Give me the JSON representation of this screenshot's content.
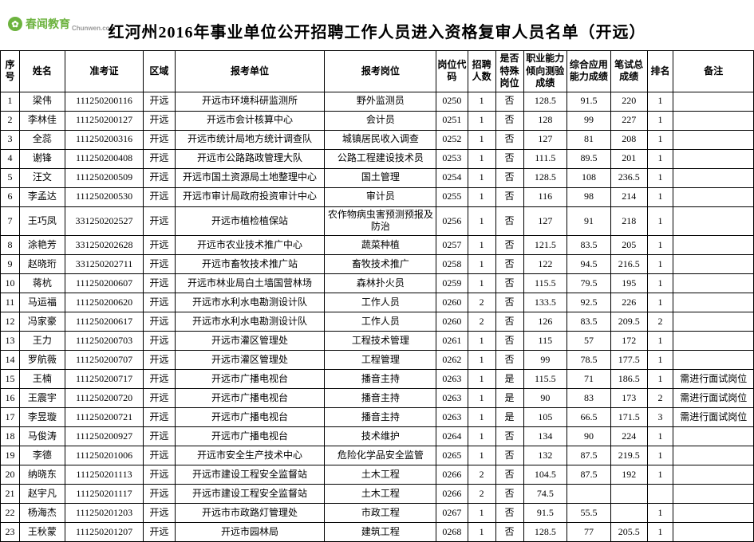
{
  "logo": {
    "main": "春闻教育",
    "sub": "Chunwen.com",
    "iconGlyph": "✿"
  },
  "title": "红河州2016年事业单位公开招聘工作人员进入资格复审人员名单（开远）",
  "headers": {
    "seq": "序号",
    "name": "姓名",
    "exam": "准考证",
    "area": "区域",
    "unit": "报考单位",
    "post": "报考岗位",
    "code": "岗位代码",
    "num": "招聘人数",
    "spec": "是否特殊岗位",
    "s1": "职业能力倾向测验成绩",
    "s2": "综合应用能力成绩",
    "s3": "笔试总成绩",
    "rank": "排名",
    "note": "备注"
  },
  "rows": [
    {
      "seq": "1",
      "name": "梁伟",
      "exam": "111250200116",
      "area": "开远",
      "unit": "开远市环境科研监测所",
      "post": "野外监测员",
      "code": "0250",
      "num": "1",
      "spec": "否",
      "s1": "128.5",
      "s2": "91.5",
      "s3": "220",
      "rank": "1",
      "note": ""
    },
    {
      "seq": "2",
      "name": "李林佳",
      "exam": "111250200127",
      "area": "开远",
      "unit": "开远市会计核算中心",
      "post": "会计员",
      "code": "0251",
      "num": "1",
      "spec": "否",
      "s1": "128",
      "s2": "99",
      "s3": "227",
      "rank": "1",
      "note": ""
    },
    {
      "seq": "3",
      "name": "全蕊",
      "exam": "111250200316",
      "area": "开远",
      "unit": "开远市统计局地方统计调查队",
      "post": "城镇居民收入调查",
      "code": "0252",
      "num": "1",
      "spec": "否",
      "s1": "127",
      "s2": "81",
      "s3": "208",
      "rank": "1",
      "note": ""
    },
    {
      "seq": "4",
      "name": "谢锋",
      "exam": "111250200408",
      "area": "开远",
      "unit": "开远市公路路政管理大队",
      "post": "公路工程建设技术员",
      "code": "0253",
      "num": "1",
      "spec": "否",
      "s1": "111.5",
      "s2": "89.5",
      "s3": "201",
      "rank": "1",
      "note": ""
    },
    {
      "seq": "5",
      "name": "汪文",
      "exam": "111250200509",
      "area": "开远",
      "unit": "开远市国土资源局土地整理中心",
      "post": "国土管理",
      "code": "0254",
      "num": "1",
      "spec": "否",
      "s1": "128.5",
      "s2": "108",
      "s3": "236.5",
      "rank": "1",
      "note": ""
    },
    {
      "seq": "6",
      "name": "李孟达",
      "exam": "111250200530",
      "area": "开远",
      "unit": "开远市审计局政府投资审计中心",
      "post": "审计员",
      "code": "0255",
      "num": "1",
      "spec": "否",
      "s1": "116",
      "s2": "98",
      "s3": "214",
      "rank": "1",
      "note": ""
    },
    {
      "seq": "7",
      "name": "王巧凤",
      "exam": "331250202527",
      "area": "开远",
      "unit": "开远市植检植保站",
      "post": "农作物病虫害预测预报及防治",
      "code": "0256",
      "num": "1",
      "spec": "否",
      "s1": "127",
      "s2": "91",
      "s3": "218",
      "rank": "1",
      "note": ""
    },
    {
      "seq": "8",
      "name": "涂艳芳",
      "exam": "331250202628",
      "area": "开远",
      "unit": "开远市农业技术推广中心",
      "post": "蔬菜种植",
      "code": "0257",
      "num": "1",
      "spec": "否",
      "s1": "121.5",
      "s2": "83.5",
      "s3": "205",
      "rank": "1",
      "note": ""
    },
    {
      "seq": "9",
      "name": "赵晓珩",
      "exam": "331250202711",
      "area": "开远",
      "unit": "开远市畜牧技术推广站",
      "post": "畜牧技术推广",
      "code": "0258",
      "num": "1",
      "spec": "否",
      "s1": "122",
      "s2": "94.5",
      "s3": "216.5",
      "rank": "1",
      "note": ""
    },
    {
      "seq": "10",
      "name": "蒋杭",
      "exam": "111250200607",
      "area": "开远",
      "unit": "开远市林业局白土墙国营林场",
      "post": "森林扑火员",
      "code": "0259",
      "num": "1",
      "spec": "否",
      "s1": "115.5",
      "s2": "79.5",
      "s3": "195",
      "rank": "1",
      "note": ""
    },
    {
      "seq": "11",
      "name": "马运福",
      "exam": "111250200620",
      "area": "开远",
      "unit": "开远市水利水电勘测设计队",
      "post": "工作人员",
      "code": "0260",
      "num": "2",
      "spec": "否",
      "s1": "133.5",
      "s2": "92.5",
      "s3": "226",
      "rank": "1",
      "note": ""
    },
    {
      "seq": "12",
      "name": "冯家豪",
      "exam": "111250200617",
      "area": "开远",
      "unit": "开远市水利水电勘测设计队",
      "post": "工作人员",
      "code": "0260",
      "num": "2",
      "spec": "否",
      "s1": "126",
      "s2": "83.5",
      "s3": "209.5",
      "rank": "2",
      "note": ""
    },
    {
      "seq": "13",
      "name": "王力",
      "exam": "111250200703",
      "area": "开远",
      "unit": "开远市灌区管理处",
      "post": "工程技术管理",
      "code": "0261",
      "num": "1",
      "spec": "否",
      "s1": "115",
      "s2": "57",
      "s3": "172",
      "rank": "1",
      "note": ""
    },
    {
      "seq": "14",
      "name": "罗航薇",
      "exam": "111250200707",
      "area": "开远",
      "unit": "开远市灌区管理处",
      "post": "工程管理",
      "code": "0262",
      "num": "1",
      "spec": "否",
      "s1": "99",
      "s2": "78.5",
      "s3": "177.5",
      "rank": "1",
      "note": ""
    },
    {
      "seq": "15",
      "name": "王楠",
      "exam": "111250200717",
      "area": "开远",
      "unit": "开远市广播电视台",
      "post": "播音主持",
      "code": "0263",
      "num": "1",
      "spec": "是",
      "s1": "115.5",
      "s2": "71",
      "s3": "186.5",
      "rank": "1",
      "note": "需进行面试岗位"
    },
    {
      "seq": "16",
      "name": "王震宇",
      "exam": "111250200720",
      "area": "开远",
      "unit": "开远市广播电视台",
      "post": "播音主持",
      "code": "0263",
      "num": "1",
      "spec": "是",
      "s1": "90",
      "s2": "83",
      "s3": "173",
      "rank": "2",
      "note": "需进行面试岗位"
    },
    {
      "seq": "17",
      "name": "李昱璇",
      "exam": "111250200721",
      "area": "开远",
      "unit": "开远市广播电视台",
      "post": "播音主持",
      "code": "0263",
      "num": "1",
      "spec": "是",
      "s1": "105",
      "s2": "66.5",
      "s3": "171.5",
      "rank": "3",
      "note": "需进行面试岗位"
    },
    {
      "seq": "18",
      "name": "马俊涛",
      "exam": "111250200927",
      "area": "开远",
      "unit": "开远市广播电视台",
      "post": "技术维护",
      "code": "0264",
      "num": "1",
      "spec": "否",
      "s1": "134",
      "s2": "90",
      "s3": "224",
      "rank": "1",
      "note": ""
    },
    {
      "seq": "19",
      "name": "李德",
      "exam": "111250201006",
      "area": "开远",
      "unit": "开远市安全生产技术中心",
      "post": "危险化学品安全监管",
      "code": "0265",
      "num": "1",
      "spec": "否",
      "s1": "132",
      "s2": "87.5",
      "s3": "219.5",
      "rank": "1",
      "note": ""
    },
    {
      "seq": "20",
      "name": "纳晓东",
      "exam": "111250201113",
      "area": "开远",
      "unit": "开远市建设工程安全监督站",
      "post": "土木工程",
      "code": "0266",
      "num": "2",
      "spec": "否",
      "s1": "104.5",
      "s2": "87.5",
      "s3": "192",
      "rank": "1",
      "note": ""
    },
    {
      "seq": "21",
      "name": "赵宇凡",
      "exam": "111250201117",
      "area": "开远",
      "unit": "开远市建设工程安全监督站",
      "post": "土木工程",
      "code": "0266",
      "num": "2",
      "spec": "否",
      "s1": "74.5",
      "s2": "",
      "s3": "",
      "rank": "",
      "note": ""
    },
    {
      "seq": "22",
      "name": "杨海杰",
      "exam": "111250201203",
      "area": "开远",
      "unit": "开远市市政路灯管理处",
      "post": "市政工程",
      "code": "0267",
      "num": "1",
      "spec": "否",
      "s1": "91.5",
      "s2": "55.5",
      "s3": "",
      "rank": "1",
      "note": ""
    },
    {
      "seq": "23",
      "name": "王秋蒙",
      "exam": "111250201207",
      "area": "开远",
      "unit": "开远市园林局",
      "post": "建筑工程",
      "code": "0268",
      "num": "1",
      "spec": "否",
      "s1": "128.5",
      "s2": "77",
      "s3": "205.5",
      "rank": "1",
      "note": ""
    }
  ]
}
